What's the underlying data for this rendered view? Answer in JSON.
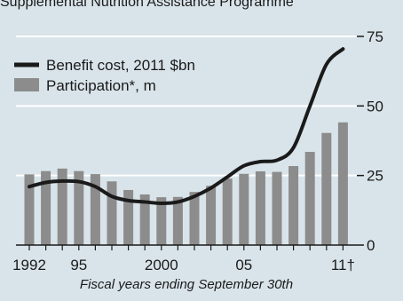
{
  "chart_data": {
    "type": "bar",
    "subtitle": "Supplemental Nutrition Assistance Programme",
    "xlabel": "Fiscal years ending September 30th",
    "x": [
      1992,
      1993,
      1994,
      1995,
      1996,
      1997,
      1998,
      1999,
      2000,
      2001,
      2002,
      2003,
      2004,
      2005,
      2006,
      2007,
      2008,
      2009,
      2010,
      2011
    ],
    "x_tick_labels": [
      {
        "year": 1992,
        "label": "1992"
      },
      {
        "year": 1995,
        "label": "95"
      },
      {
        "year": 2000,
        "label": "2000"
      },
      {
        "year": 2005,
        "label": "05"
      },
      {
        "year": 2011,
        "label": "11†"
      }
    ],
    "y_ticks": [
      0,
      25,
      50,
      75
    ],
    "ylim": [
      0,
      75
    ],
    "grid": true,
    "legend_position": "top-left",
    "colors": {
      "background": "#d9e4ea",
      "bar": "#8c8c8c",
      "line": "#1a1a1a",
      "grid": "#ffffff"
    },
    "series": [
      {
        "name": "Participation*, m",
        "type": "bar",
        "values": [
          25.4,
          26.6,
          27.5,
          26.6,
          25.5,
          22.9,
          19.8,
          18.2,
          17.2,
          17.3,
          19.1,
          21.3,
          23.9,
          25.6,
          26.5,
          26.3,
          28.4,
          33.5,
          40.3,
          44.1
        ]
      },
      {
        "name": "Benefit cost, 2011 $bn",
        "type": "line",
        "values": [
          21.0,
          22.5,
          23.0,
          22.8,
          21.0,
          17.5,
          16.0,
          15.5,
          15.0,
          15.5,
          17.5,
          20.5,
          24.5,
          28.5,
          30.0,
          30.5,
          35.0,
          50.0,
          65.0,
          70.5
        ]
      }
    ]
  }
}
